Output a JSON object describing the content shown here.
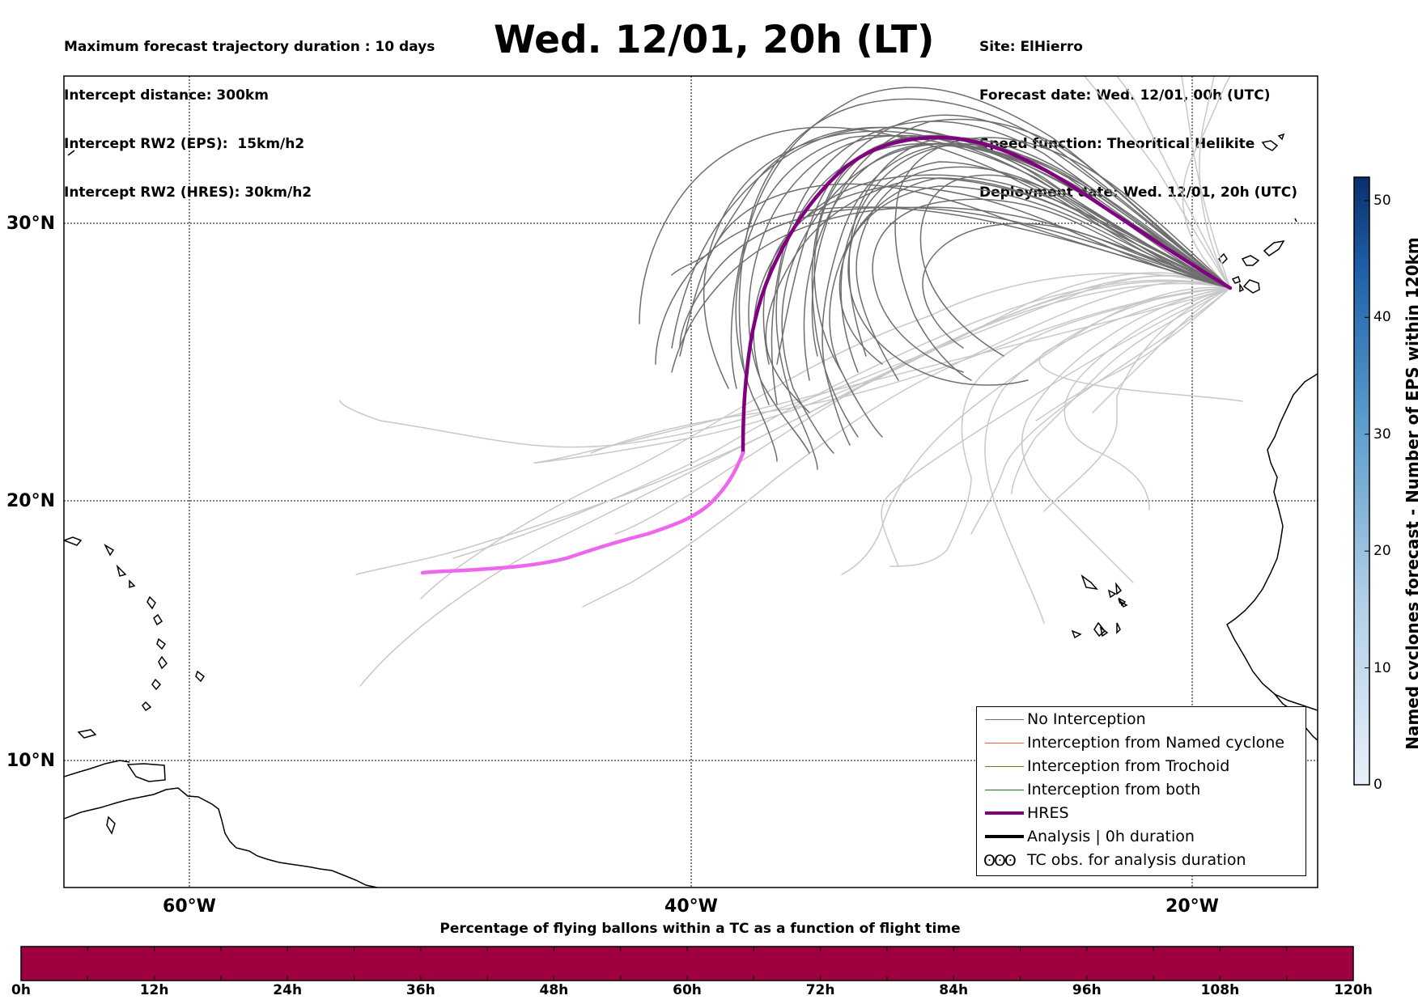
{
  "header": {
    "left_lines": [
      "Maximum forecast trajectory duration : 10 days",
      "Intercept distance: 300km",
      "Intercept RW2 (EPS):  15km/h2",
      "Intercept RW2 (HRES): 30km/h2"
    ],
    "title": "Wed. 12/01, 20h (LT)",
    "right_lines": [
      "Site: ElHierro",
      "Forecast date: Wed. 12/01, 00h (UTC)",
      "Speed function: Theoritical Helikite",
      "Deployment date: Wed. 12/01, 20h (UTC)"
    ]
  },
  "map": {
    "lat_labels": [
      "30°N",
      "20°N",
      "10°N"
    ],
    "lon_labels": [
      "60°W",
      "40°W",
      "20°W"
    ],
    "colors": {
      "no_interception": "#6e6e6e",
      "light_track": "#c8c8c8",
      "named_cyclone": "#e8622a",
      "trochoid": "#7a7a1a",
      "both": "#1a7a1a",
      "hres": "#800080",
      "hres_late": "#ee66ee",
      "analysis": "#000000"
    }
  },
  "legend": {
    "items": [
      {
        "label": "No Interception",
        "style": "thin-gray"
      },
      {
        "label": "Interception from Named cyclone",
        "style": "thin-orange"
      },
      {
        "label": "Interception from Trochoid",
        "style": "thin-olive"
      },
      {
        "label": "Interception from both",
        "style": "thin-green"
      },
      {
        "label": "HRES",
        "style": "thick-purple"
      },
      {
        "label": "Analysis | 0h duration",
        "style": "thick-black"
      },
      {
        "label": "TC obs. for analysis duration",
        "style": "tc-symbol"
      }
    ],
    "tc_symbol": "ʘʘʘ"
  },
  "bottom_bar": {
    "title": "Percentage of flying ballons within a TC as a function of flight time",
    "fill_color": "#9e0040",
    "ticks": [
      "0h",
      "12h",
      "24h",
      "36h",
      "48h",
      "60h",
      "72h",
      "84h",
      "96h",
      "108h",
      "120h"
    ]
  },
  "colorbar": {
    "label": "Named cyclones forecast - Number of EPS within 120km",
    "ticks": [
      "0",
      "10",
      "20",
      "30",
      "40",
      "50"
    ],
    "range": [
      0,
      52
    ],
    "color_low": "#e8f0fa",
    "color_high": "#08306b"
  }
}
